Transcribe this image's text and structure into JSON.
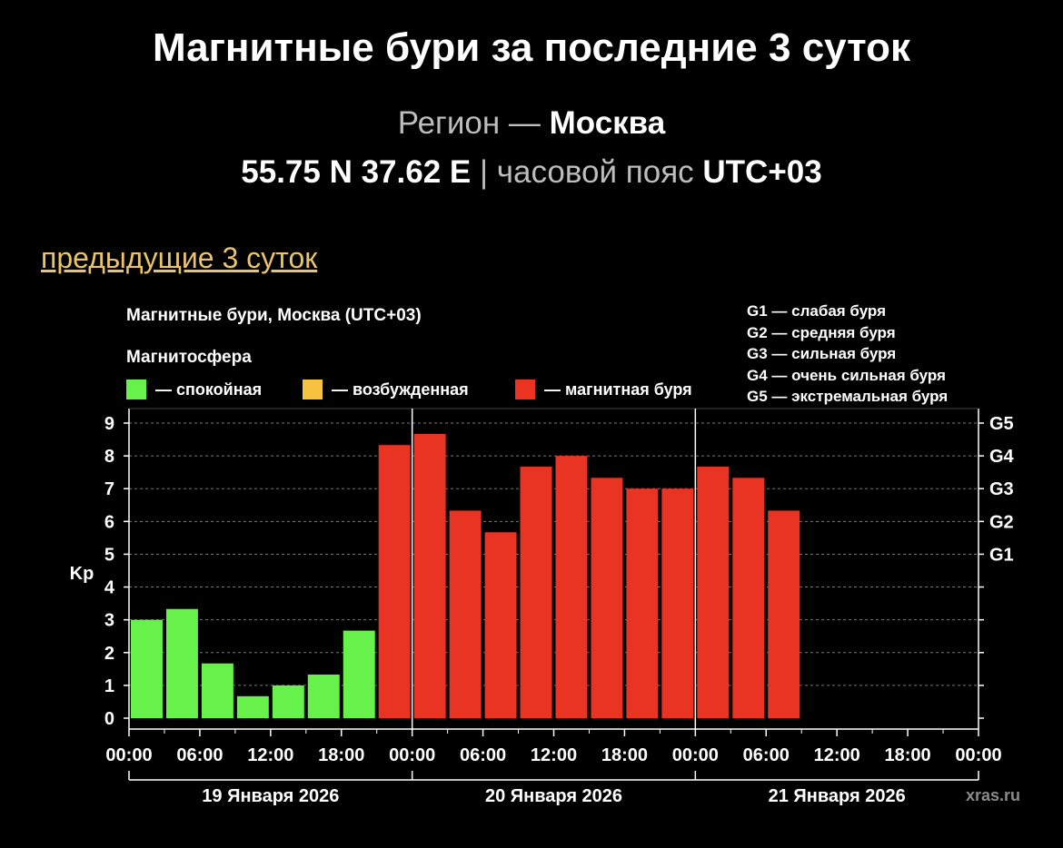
{
  "header": {
    "title": "Магнитные бури за последние 3 суток",
    "region_label": "Регион —",
    "region_name": "Москва",
    "coords": "55.75 N 37.62 E",
    "separator": "|",
    "tz_label": "часовой пояс",
    "tz_value": "UTC+03"
  },
  "prev_link": "предыдущие 3 суток",
  "chart_data": {
    "type": "bar",
    "title": "Магнитные бури, Москва (UTC+03)",
    "ylabel": "Kp",
    "ylim": [
      0,
      9
    ],
    "yticks": [
      "0",
      "1",
      "2",
      "3",
      "4",
      "5",
      "6",
      "7",
      "8",
      "9"
    ],
    "right_ticks": [
      {
        "label": "G1",
        "value": 5
      },
      {
        "label": "G2",
        "value": 6
      },
      {
        "label": "G3",
        "value": 7
      },
      {
        "label": "G4",
        "value": 8
      },
      {
        "label": "G5",
        "value": 9
      }
    ],
    "x_tick_labels": [
      "00:00",
      "06:00",
      "12:00",
      "18:00",
      "00:00",
      "06:00",
      "12:00",
      "18:00",
      "00:00",
      "06:00",
      "12:00",
      "18:00",
      "00:00"
    ],
    "day_labels": [
      "19 Января 2026",
      "20 Января 2026",
      "21 Января 2026"
    ],
    "legend_title": "Магнитосфера",
    "legend": [
      {
        "label": "— спокойная",
        "color": "#66f24a"
      },
      {
        "label": "— возбужденная",
        "color": "#f8c440"
      },
      {
        "label": "— магнитная буря",
        "color": "#e93323"
      }
    ],
    "storm_legend": [
      "G1 — слабая буря",
      "G2 — средняя буря",
      "G3 — сильная буря",
      "G4 — очень сильная буря",
      "G5 — экстремальная буря"
    ],
    "values": [
      3.0,
      3.33,
      1.67,
      0.67,
      1.0,
      1.33,
      2.67,
      8.33,
      8.67,
      6.33,
      5.67,
      7.67,
      8.0,
      7.33,
      7.0,
      7.0,
      7.67,
      7.33,
      6.33
    ],
    "bar_status": [
      "quiet",
      "quiet",
      "quiet",
      "quiet",
      "quiet",
      "quiet",
      "quiet",
      "storm",
      "storm",
      "storm",
      "storm",
      "storm",
      "storm",
      "storm",
      "storm",
      "storm",
      "storm",
      "storm",
      "storm"
    ],
    "grid": true
  },
  "watermark": "xras.ru"
}
